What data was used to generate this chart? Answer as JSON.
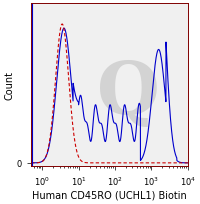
{
  "title": "",
  "xlabel": "Human CD45RO (UCHL1) Biotin",
  "ylabel": "Count",
  "xlim": [
    0.5,
    10000
  ],
  "ylim": [
    0,
    1.15
  ],
  "background_color": "#ffffff",
  "plot_bg_color": "#f0f0f0",
  "solid_line_color": "#0000cc",
  "dashed_line_color": "#cc0000",
  "watermark_color": "#d0d0d0",
  "xlabel_fontsize": 7,
  "ylabel_fontsize": 7,
  "tick_fontsize": 6
}
